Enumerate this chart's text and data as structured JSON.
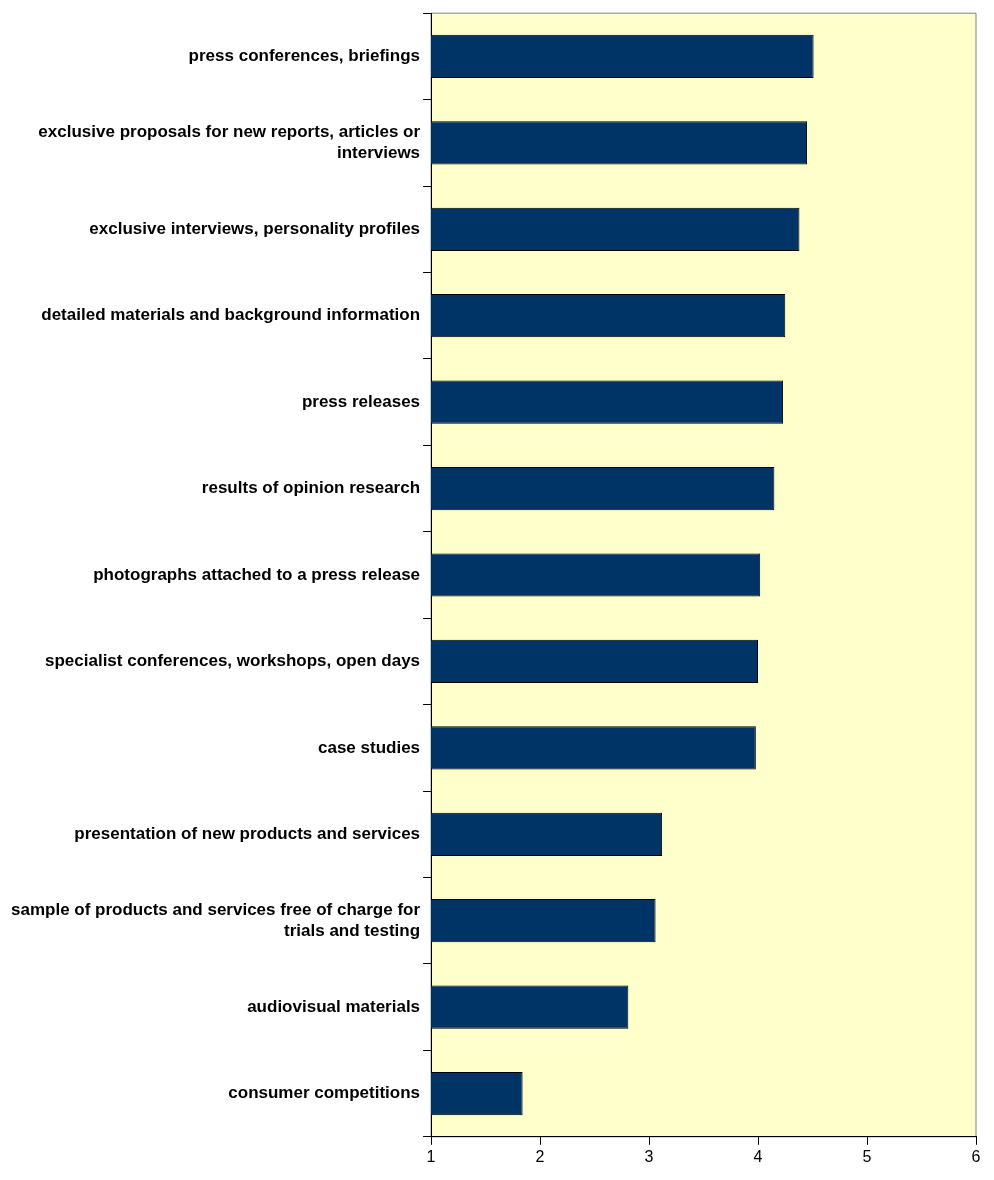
{
  "chart_data": {
    "type": "bar",
    "orientation": "horizontal",
    "categories": [
      "press conferences, briefings",
      "exclusive proposals for new reports, articles or interviews",
      "exclusive interviews, personality profiles",
      "detailed materials and background information",
      "press releases",
      "results of opinion research",
      "photographs attached to a press release",
      "specialist conferences, workshops, open days",
      "case studies",
      "presentation of new products and services",
      "sample of products and services free of charge for trials and testing",
      "audiovisual materials",
      "consumer competitions"
    ],
    "values": [
      4.51,
      4.45,
      4.38,
      4.25,
      4.23,
      4.15,
      4.02,
      4.0,
      3.98,
      3.12,
      3.06,
      2.81,
      1.84
    ],
    "color": "#003366",
    "xlim": [
      1,
      6
    ],
    "xticks": [
      1,
      2,
      3,
      4,
      5,
      6
    ],
    "grid": false,
    "legend": false
  }
}
